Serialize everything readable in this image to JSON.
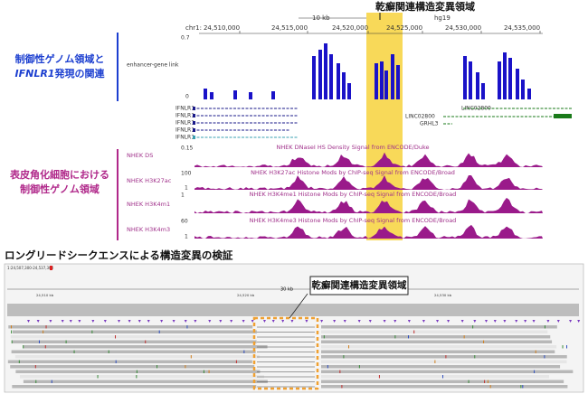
{
  "upper": {
    "region_label": "乾癬関連構造変異領域",
    "left_label_1": {
      "line1": "制御性ゲノム領域と",
      "gene": "IFNLR1",
      "line2_rest": "発現の関連"
    },
    "left_label_2": {
      "line1": "表皮角化細胞における",
      "line2": "制御性ゲノム領域"
    },
    "ruler": {
      "scale": "10 kb",
      "assembly": "hg19",
      "chrom": "chr1:",
      "positions": [
        "24,510,000",
        "24,515,000",
        "24,520,000",
        "24,525,000",
        "24,530,000",
        "24,535,000"
      ]
    },
    "link_track": {
      "name": "enhancer-gene link",
      "top": "0.7",
      "bottom": "0"
    },
    "genes": {
      "left": [
        "IFNLR1",
        "IFNLR1",
        "IFNLR1",
        "IFNLR1",
        "IFNLR1"
      ],
      "right": [
        "LINC02800",
        "LINC02800",
        "GRHL3"
      ]
    },
    "tracks": [
      {
        "name": "NHEK DS",
        "scale": "0.15",
        "description": "NHEK DNaseI HS Density Signal from ENCODE/Duke"
      },
      {
        "name": "NHEK H3K27ac",
        "scale": "100",
        "scale_low": "1",
        "description": "NHEK H3K27ac Histone Mods by ChIP-seq Signal from ENCODE/Broad"
      },
      {
        "name": "NHEK H3K4m1",
        "scale": "1",
        "description": "NHEK H3K4me1 Histone Mods by ChIP-seq Signal from ENCODE/Broad"
      },
      {
        "name": "NHEK H3K4m3",
        "scale": "60",
        "scale_low": "1",
        "description": "NHEK H3K4me3 Histone Mods by ChIP-seq Signal from ENCODE/Broad"
      }
    ]
  },
  "lower": {
    "title": "ロングリードシークエンスによる構造変異の検証",
    "locus": "1:24,507,300-24,537,300",
    "span": "30 kb",
    "positions": [
      "24,510 kb",
      "24,520 kb",
      "24,530 kb"
    ],
    "callout": "乾癬関連構造変異領域"
  }
}
